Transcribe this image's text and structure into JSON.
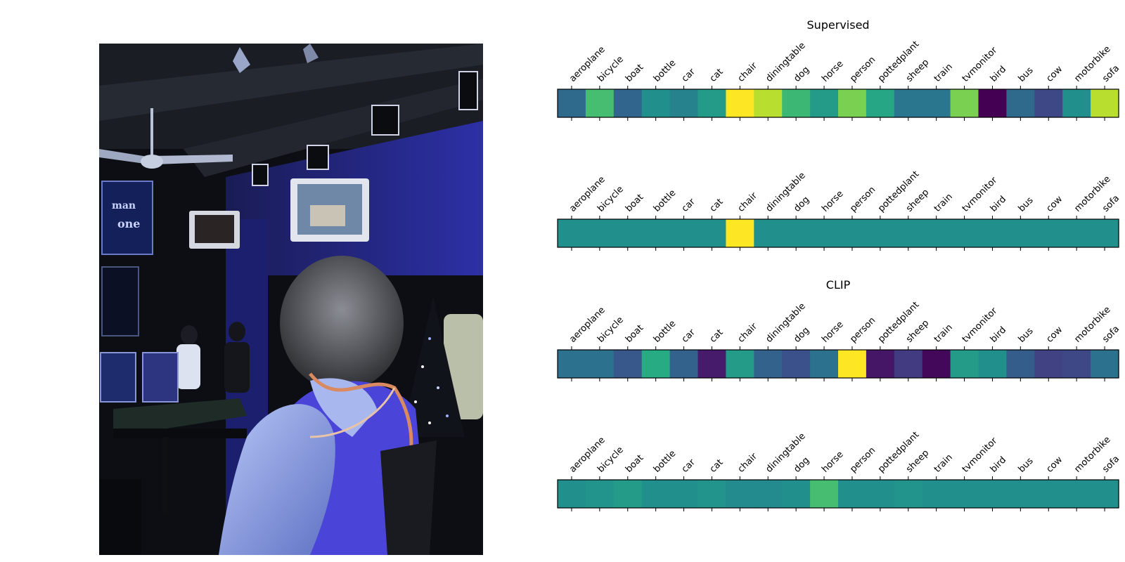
{
  "chart_data": [
    {
      "type": "heatmap",
      "title": "Supervised",
      "categories": [
        "aeroplane",
        "bicycle",
        "boat",
        "bottle",
        "car",
        "cat",
        "chair",
        "diningtable",
        "dog",
        "horse",
        "person",
        "pottedplant",
        "sheep",
        "train",
        "tvmonitor",
        "bird",
        "bus",
        "cow",
        "motorbike",
        "sofa"
      ],
      "values": [
        0.35,
        0.7,
        0.33,
        0.5,
        0.45,
        0.55,
        1.0,
        0.9,
        0.68,
        0.55,
        0.8,
        0.6,
        0.4,
        0.4,
        0.8,
        0.0,
        0.35,
        0.22,
        0.5,
        0.9
      ],
      "colormap": "viridis",
      "colors_approx": [
        "#26708e",
        "#3dbc74",
        "#306a8e",
        "#1f958b",
        "#23898e",
        "#1fa088",
        "#fde725",
        "#c2df23",
        "#3dbc74",
        "#1fa088",
        "#95d840",
        "#22a785",
        "#2a788e",
        "#26828e",
        "#8fd744",
        "#440154",
        "#31668e",
        "#3e4a89",
        "#1f978b",
        "#c2df23"
      ]
    },
    {
      "type": "heatmap",
      "title": "",
      "categories": [
        "aeroplane",
        "bicycle",
        "boat",
        "bottle",
        "car",
        "cat",
        "chair",
        "diningtable",
        "dog",
        "horse",
        "person",
        "pottedplant",
        "sheep",
        "train",
        "tvmonitor",
        "bird",
        "bus",
        "cow",
        "motorbike",
        "sofa"
      ],
      "values": [
        0.5,
        0.5,
        0.5,
        0.5,
        0.5,
        0.5,
        1.0,
        0.5,
        0.5,
        0.5,
        0.5,
        0.5,
        0.5,
        0.5,
        0.5,
        0.5,
        0.5,
        0.5,
        0.5,
        0.5
      ],
      "colormap": "viridis",
      "colors_approx": [
        "#21918c",
        "#21918c",
        "#21918c",
        "#21918c",
        "#21918c",
        "#21918c",
        "#fde725",
        "#21918c",
        "#21918c",
        "#21918c",
        "#21918c",
        "#21918c",
        "#21918c",
        "#21918c",
        "#21918c",
        "#21918c",
        "#21918c",
        "#21918c",
        "#21918c",
        "#21918c"
      ]
    },
    {
      "type": "heatmap",
      "title": "CLIP",
      "categories": [
        "aeroplane",
        "bicycle",
        "boat",
        "bottle",
        "car",
        "cat",
        "chair",
        "diningtable",
        "dog",
        "horse",
        "person",
        "pottedplant",
        "sheep",
        "train",
        "tvmonitor",
        "bird",
        "bus",
        "cow",
        "motorbike",
        "sofa"
      ],
      "values": [
        0.38,
        0.38,
        0.28,
        0.62,
        0.32,
        0.08,
        0.55,
        0.32,
        0.25,
        0.38,
        1.0,
        0.06,
        0.18,
        0.02,
        0.55,
        0.5,
        0.3,
        0.2,
        0.22,
        0.38
      ],
      "colormap": "viridis",
      "colors_approx": [
        "#2c728e",
        "#2c728e",
        "#3e4c8a",
        "#20a386",
        "#33628d",
        "#481c6e",
        "#1f998a",
        "#33638d",
        "#3b528b",
        "#2c728e",
        "#fde725",
        "#471365",
        "#472d7b",
        "#440256",
        "#1f998a",
        "#21918c",
        "#355f8d",
        "#453781",
        "#443983",
        "#2c728e"
      ]
    },
    {
      "type": "heatmap",
      "title": "",
      "categories": [
        "aeroplane",
        "bicycle",
        "boat",
        "bottle",
        "car",
        "cat",
        "chair",
        "diningtable",
        "dog",
        "horse",
        "person",
        "pottedplant",
        "sheep",
        "train",
        "tvmonitor",
        "bird",
        "bus",
        "cow",
        "motorbike",
        "sofa"
      ],
      "values": [
        0.5,
        0.52,
        0.55,
        0.5,
        0.5,
        0.52,
        0.48,
        0.48,
        0.5,
        0.7,
        0.5,
        0.5,
        0.52,
        0.5,
        0.5,
        0.5,
        0.5,
        0.5,
        0.5,
        0.5
      ],
      "colormap": "viridis",
      "colors_approx": [
        "#21918c",
        "#1f968b",
        "#1f9a8a",
        "#21918c",
        "#21918c",
        "#1f968b",
        "#228d8d",
        "#228d8d",
        "#21918c",
        "#3dbc74",
        "#21918c",
        "#21918c",
        "#1f968b",
        "#21918c",
        "#21918c",
        "#21918c",
        "#21918c",
        "#21918c",
        "#21918c",
        "#21918c"
      ]
    }
  ],
  "photo": {
    "description_colors": {
      "wall_accent": "#2a2f9e",
      "ceiling": "#15181d",
      "skin": "#8ea3e6",
      "hair": "#54565a"
    }
  }
}
